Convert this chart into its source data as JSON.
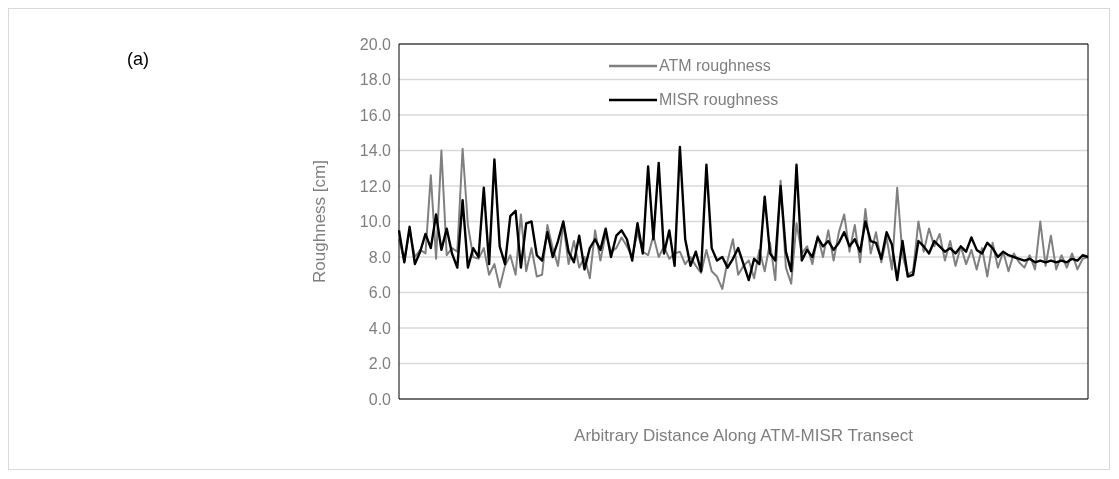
{
  "chart_data": {
    "type": "line",
    "xlabel": "Arbitrary Distance Along ATM-MISR Transect",
    "ylabel": "Roughness [cm]",
    "annotations": [
      "(a)"
    ],
    "categories": [
      null,
      null,
      null,
      null,
      null,
      null,
      null,
      null,
      null,
      null,
      null,
      null,
      null,
      null,
      null,
      null,
      null,
      null,
      null,
      null,
      null,
      null,
      null,
      null,
      null,
      null,
      null,
      null,
      null,
      null,
      null,
      null,
      null,
      null,
      null,
      null,
      null,
      null,
      null,
      null,
      null,
      null,
      null,
      null,
      null,
      null,
      null,
      null,
      null,
      null,
      null,
      null,
      null,
      null,
      null,
      null,
      null,
      null,
      null,
      null,
      null,
      null,
      null,
      null,
      null,
      null,
      null,
      null,
      null,
      null,
      null,
      null,
      null,
      null,
      null,
      null,
      null,
      null,
      null,
      null,
      null,
      null,
      null,
      null,
      null,
      null,
      null,
      null,
      null,
      null,
      null,
      null,
      null,
      null,
      null,
      null,
      null,
      null,
      null,
      null,
      null,
      null,
      null,
      null,
      null,
      null,
      null,
      null,
      null,
      null,
      null,
      null,
      null,
      null,
      null,
      null,
      null,
      null,
      null,
      null,
      null,
      null,
      null,
      null,
      null,
      null,
      null,
      null,
      null,
      null,
      null
    ],
    "series": [
      {
        "name": "ATM roughness",
        "color": "#808080",
        "values": [
          9.0,
          7.8,
          9.5,
          8.0,
          8.4,
          8.2,
          12.6,
          7.9,
          14.0,
          8.1,
          8.5,
          8.3,
          14.1,
          9.8,
          8.0,
          7.9,
          8.5,
          7.0,
          7.6,
          6.3,
          7.5,
          8.1,
          7.0,
          10.4,
          7.2,
          8.5,
          6.9,
          7.0,
          9.8,
          8.5,
          7.5,
          9.9,
          7.6,
          8.9,
          7.4,
          8.0,
          6.8,
          9.5,
          7.8,
          9.3,
          8.3,
          8.5,
          9.1,
          8.6,
          8.0,
          9.4,
          8.3,
          8.1,
          9.2,
          8.0,
          8.6,
          7.9,
          8.2,
          8.3,
          7.6,
          8.0,
          7.5,
          7.1,
          8.4,
          7.2,
          6.9,
          6.2,
          7.8,
          9.0,
          7.0,
          7.5,
          7.8,
          6.8,
          8.4,
          7.2,
          8.8,
          6.7,
          12.3,
          7.4,
          6.5,
          9.9,
          8.2,
          8.6,
          7.6,
          9.2,
          8.0,
          9.5,
          7.8,
          9.4,
          10.4,
          8.3,
          9.8,
          7.7,
          10.7,
          8.2,
          9.4,
          7.7,
          9.1,
          7.3,
          11.9,
          8.1,
          7.0,
          7.2,
          10.0,
          8.3,
          9.6,
          8.6,
          9.3,
          7.8,
          8.9,
          7.5,
          8.6,
          7.6,
          8.4,
          7.3,
          8.5,
          6.9,
          8.8,
          7.4,
          8.3,
          7.2,
          8.2,
          7.7,
          7.4,
          8.1,
          7.3,
          10.0,
          7.5,
          9.2,
          7.3,
          8.1,
          7.4,
          8.2,
          7.3,
          7.9,
          8.0
        ]
      },
      {
        "name": "MISR roughness",
        "color": "#000000",
        "values": [
          9.5,
          7.7,
          9.7,
          7.6,
          8.3,
          9.3,
          8.5,
          10.4,
          8.4,
          9.6,
          8.2,
          7.4,
          11.2,
          7.4,
          8.5,
          8.0,
          11.9,
          7.6,
          13.5,
          8.6,
          7.6,
          10.3,
          10.6,
          7.4,
          9.9,
          10.0,
          8.1,
          7.8,
          9.4,
          8.0,
          8.9,
          10.0,
          8.3,
          7.7,
          9.2,
          7.3,
          8.5,
          9.0,
          8.4,
          9.6,
          8.0,
          9.2,
          9.5,
          9.0,
          7.8,
          9.9,
          8.2,
          13.1,
          9.0,
          13.3,
          8.2,
          9.5,
          7.5,
          14.2,
          9.0,
          7.5,
          8.3,
          7.2,
          13.2,
          8.5,
          7.8,
          8.0,
          7.4,
          7.9,
          8.5,
          7.6,
          6.7,
          7.9,
          7.6,
          11.4,
          8.2,
          7.8,
          12.0,
          8.3,
          7.2,
          13.2,
          7.8,
          8.4,
          8.0,
          9.1,
          8.6,
          8.9,
          8.4,
          8.8,
          9.4,
          8.6,
          9.0,
          8.3,
          10.0,
          8.9,
          8.8,
          7.9,
          9.4,
          8.7,
          6.7,
          8.9,
          6.9,
          7.0,
          8.9,
          8.6,
          8.2,
          8.9,
          8.6,
          8.3,
          8.5,
          8.2,
          8.6,
          8.3,
          9.1,
          8.4,
          8.2,
          8.8,
          8.5,
          8.0,
          8.3,
          8.1,
          8.0,
          7.9,
          7.8,
          7.9,
          7.7,
          7.8,
          7.7,
          7.8,
          7.7,
          7.8,
          7.7,
          7.9,
          7.8,
          8.1,
          8.0
        ]
      }
    ],
    "ylim": [
      0,
      20
    ],
    "yticks": [
      {
        "value": 0,
        "label": "0.0"
      },
      {
        "value": 2,
        "label": "2.0"
      },
      {
        "value": 4,
        "label": "4.0"
      },
      {
        "value": 6,
        "label": "6.0"
      },
      {
        "value": 8,
        "label": "8.0"
      },
      {
        "value": 10,
        "label": "10.0"
      },
      {
        "value": 12,
        "label": "12.0"
      },
      {
        "value": 14,
        "label": "14.0"
      },
      {
        "value": 16,
        "label": "16.0"
      },
      {
        "value": 18,
        "label": "18.0"
      },
      {
        "value": 20,
        "label": "20.0"
      }
    ],
    "grid": "y",
    "legend": "top",
    "marker": "none",
    "line_style": "solid"
  }
}
